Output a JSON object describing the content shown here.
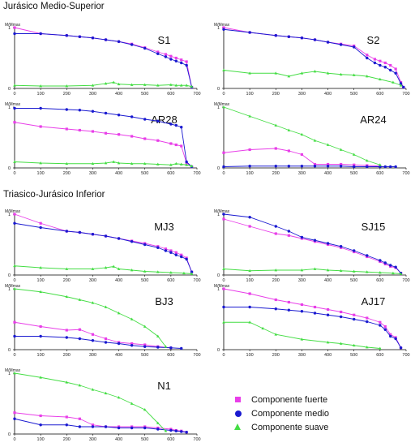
{
  "sections": [
    {
      "title": "Jurásico Medio-Superior"
    },
    {
      "title": "Triasico-Jurásico Inferior"
    }
  ],
  "legend": [
    {
      "label": "Componente fuerte",
      "marker": "square",
      "color": "#e83ee8"
    },
    {
      "label": "Componente medio",
      "marker": "circle",
      "color": "#1a1ad0"
    },
    {
      "label": "Componente suave",
      "marker": "triangle",
      "color": "#44dd44"
    }
  ],
  "colors": {
    "fuerte": "#e83ee8",
    "medio": "#1a1ad0",
    "suave": "#44dd44"
  },
  "chart_data": [
    {
      "type": "line",
      "title": "S1",
      "ylabel": "M/Mmax",
      "xlim": [
        0,
        700
      ],
      "ylim": [
        0,
        1
      ],
      "xticks": [
        0,
        100,
        200,
        300,
        400,
        500,
        600,
        700
      ],
      "series": [
        {
          "name": "Componente fuerte",
          "x": [
            0,
            100,
            200,
            250,
            300,
            350,
            400,
            450,
            500,
            550,
            580,
            600,
            620,
            640,
            660,
            680
          ],
          "y": [
            1.0,
            0.9,
            0.87,
            0.85,
            0.83,
            0.8,
            0.77,
            0.73,
            0.67,
            0.6,
            0.56,
            0.53,
            0.5,
            0.47,
            0.44,
            0.02
          ]
        },
        {
          "name": "Componente medio",
          "x": [
            0,
            100,
            200,
            250,
            300,
            350,
            400,
            450,
            500,
            550,
            580,
            600,
            620,
            640,
            660,
            680
          ],
          "y": [
            0.9,
            0.9,
            0.87,
            0.85,
            0.83,
            0.8,
            0.77,
            0.72,
            0.66,
            0.57,
            0.52,
            0.48,
            0.45,
            0.42,
            0.38,
            0.02
          ]
        },
        {
          "name": "Componente suave",
          "x": [
            0,
            100,
            200,
            300,
            350,
            380,
            400,
            450,
            500,
            550,
            600,
            620,
            640,
            660,
            680
          ],
          "y": [
            0.05,
            0.04,
            0.04,
            0.05,
            0.08,
            0.1,
            0.07,
            0.06,
            0.06,
            0.05,
            0.06,
            0.05,
            0.05,
            0.05,
            0.03
          ]
        }
      ]
    },
    {
      "type": "line",
      "title": "S2",
      "ylabel": "M/Mmax",
      "xlim": [
        0,
        700
      ],
      "ylim": [
        0,
        1
      ],
      "xticks": [
        0,
        100,
        200,
        300,
        400,
        500,
        600,
        700
      ],
      "series": [
        {
          "name": "Componente fuerte",
          "x": [
            0,
            100,
            200,
            250,
            300,
            350,
            400,
            450,
            500,
            550,
            580,
            600,
            620,
            640,
            660,
            680,
            690
          ],
          "y": [
            1.0,
            0.92,
            0.87,
            0.85,
            0.83,
            0.8,
            0.76,
            0.73,
            0.7,
            0.55,
            0.48,
            0.45,
            0.42,
            0.38,
            0.32,
            0.1,
            0.02
          ]
        },
        {
          "name": "Componente medio",
          "x": [
            0,
            100,
            200,
            250,
            300,
            350,
            400,
            450,
            500,
            550,
            580,
            600,
            620,
            640,
            660,
            680,
            690
          ],
          "y": [
            0.97,
            0.92,
            0.87,
            0.85,
            0.83,
            0.8,
            0.76,
            0.72,
            0.68,
            0.5,
            0.42,
            0.38,
            0.35,
            0.3,
            0.25,
            0.08,
            0.02
          ]
        },
        {
          "name": "Componente suave",
          "x": [
            0,
            100,
            200,
            250,
            300,
            350,
            400,
            450,
            500,
            550,
            600,
            650,
            680
          ],
          "y": [
            0.3,
            0.25,
            0.25,
            0.2,
            0.25,
            0.28,
            0.25,
            0.23,
            0.22,
            0.2,
            0.15,
            0.1,
            0.05
          ]
        }
      ]
    },
    {
      "type": "line",
      "title": "AR28",
      "ylabel": "M/Mmax",
      "xlim": [
        0,
        700
      ],
      "ylim": [
        0,
        1
      ],
      "xticks": [
        0,
        100,
        200,
        300,
        400,
        500,
        600,
        700
      ],
      "series": [
        {
          "name": "Componente fuerte",
          "x": [
            0,
            100,
            200,
            250,
            300,
            350,
            400,
            450,
            500,
            550,
            600,
            620,
            640,
            660,
            680
          ],
          "y": [
            0.75,
            0.68,
            0.64,
            0.62,
            0.6,
            0.57,
            0.55,
            0.52,
            0.48,
            0.45,
            0.4,
            0.38,
            0.36,
            0.08,
            0.02
          ]
        },
        {
          "name": "Componente medio",
          "x": [
            0,
            100,
            200,
            250,
            300,
            350,
            400,
            450,
            500,
            550,
            600,
            620,
            640,
            660,
            680
          ],
          "y": [
            0.98,
            0.98,
            0.96,
            0.95,
            0.93,
            0.9,
            0.87,
            0.84,
            0.8,
            0.77,
            0.72,
            0.7,
            0.67,
            0.1,
            0.02
          ]
        },
        {
          "name": "Componente suave",
          "x": [
            0,
            100,
            200,
            300,
            350,
            380,
            400,
            450,
            500,
            550,
            600,
            620,
            640,
            660,
            680
          ],
          "y": [
            0.1,
            0.08,
            0.07,
            0.07,
            0.08,
            0.1,
            0.08,
            0.07,
            0.07,
            0.06,
            0.05,
            0.07,
            0.06,
            0.05,
            0.03
          ]
        }
      ]
    },
    {
      "type": "line",
      "title": "AR24",
      "ylabel": "M/Mmax",
      "xlim": [
        0,
        700
      ],
      "ylim": [
        0,
        1
      ],
      "xticks": [
        0,
        100,
        200,
        300,
        400,
        500,
        600,
        700
      ],
      "series": [
        {
          "name": "Componente fuerte",
          "x": [
            0,
            100,
            200,
            250,
            300,
            350,
            400,
            450,
            500,
            550,
            600
          ],
          "y": [
            0.25,
            0.3,
            0.32,
            0.28,
            0.22,
            0.06,
            0.06,
            0.06,
            0.05,
            0.04,
            0.03
          ]
        },
        {
          "name": "Componente medio",
          "x": [
            0,
            100,
            200,
            250,
            300,
            350,
            400,
            450,
            500,
            550,
            600,
            620,
            640,
            660
          ],
          "y": [
            0.02,
            0.03,
            0.03,
            0.03,
            0.03,
            0.03,
            0.03,
            0.03,
            0.02,
            0.02,
            0.02,
            0.02,
            0.02,
            0.02
          ]
        },
        {
          "name": "Componente suave",
          "x": [
            0,
            100,
            200,
            250,
            300,
            350,
            400,
            450,
            500,
            550,
            600
          ],
          "y": [
            1.0,
            0.85,
            0.7,
            0.62,
            0.55,
            0.45,
            0.38,
            0.3,
            0.22,
            0.12,
            0.05
          ]
        }
      ]
    },
    {
      "type": "line",
      "title": "MJ3",
      "ylabel": "M/Mmax",
      "xlim": [
        0,
        700
      ],
      "ylim": [
        0,
        1
      ],
      "xticks": [
        0,
        100,
        200,
        300,
        400,
        500,
        600,
        700
      ],
      "series": [
        {
          "name": "Componente fuerte",
          "x": [
            0,
            100,
            200,
            250,
            300,
            350,
            400,
            450,
            500,
            550,
            580,
            600,
            620,
            640,
            660,
            680
          ],
          "y": [
            1.0,
            0.85,
            0.72,
            0.7,
            0.67,
            0.64,
            0.6,
            0.56,
            0.52,
            0.47,
            0.43,
            0.4,
            0.37,
            0.33,
            0.28,
            0.05
          ]
        },
        {
          "name": "Componente medio",
          "x": [
            0,
            100,
            200,
            250,
            300,
            350,
            400,
            450,
            500,
            550,
            580,
            600,
            620,
            640,
            660,
            680
          ],
          "y": [
            0.85,
            0.78,
            0.72,
            0.7,
            0.67,
            0.64,
            0.6,
            0.55,
            0.5,
            0.45,
            0.4,
            0.37,
            0.33,
            0.3,
            0.26,
            0.05
          ]
        },
        {
          "name": "Componente suave",
          "x": [
            0,
            100,
            200,
            300,
            350,
            380,
            400,
            450,
            500,
            550,
            600,
            650,
            680
          ],
          "y": [
            0.15,
            0.12,
            0.1,
            0.1,
            0.12,
            0.14,
            0.1,
            0.08,
            0.06,
            0.05,
            0.04,
            0.03,
            0.02
          ]
        }
      ]
    },
    {
      "type": "line",
      "title": "SJ15",
      "ylabel": "M/Mmax",
      "xlim": [
        0,
        700
      ],
      "ylim": [
        0,
        1
      ],
      "xticks": [
        0,
        100,
        200,
        300,
        400,
        500,
        600,
        700
      ],
      "series": [
        {
          "name": "Componente fuerte",
          "x": [
            0,
            100,
            200,
            250,
            300,
            350,
            400,
            450,
            500,
            550,
            600,
            620,
            640,
            660,
            680
          ],
          "y": [
            0.92,
            0.8,
            0.68,
            0.65,
            0.6,
            0.55,
            0.5,
            0.45,
            0.38,
            0.3,
            0.22,
            0.18,
            0.14,
            0.12,
            0.03
          ]
        },
        {
          "name": "Componente medio",
          "x": [
            0,
            100,
            200,
            250,
            300,
            350,
            400,
            450,
            500,
            550,
            600,
            620,
            640,
            660,
            680
          ],
          "y": [
            1.0,
            0.95,
            0.8,
            0.72,
            0.62,
            0.57,
            0.52,
            0.47,
            0.4,
            0.32,
            0.24,
            0.2,
            0.16,
            0.13,
            0.03
          ]
        },
        {
          "name": "Componente suave",
          "x": [
            0,
            100,
            200,
            300,
            350,
            400,
            450,
            500,
            550,
            600,
            650,
            680
          ],
          "y": [
            0.1,
            0.07,
            0.08,
            0.08,
            0.1,
            0.08,
            0.07,
            0.06,
            0.05,
            0.04,
            0.03,
            0.02
          ]
        }
      ]
    },
    {
      "type": "line",
      "title": "BJ3",
      "ylabel": "M/Mmax",
      "xlim": [
        0,
        700
      ],
      "ylim": [
        0,
        1
      ],
      "xticks": [
        0,
        100,
        200,
        300,
        400,
        500,
        600,
        700
      ],
      "series": [
        {
          "name": "Componente fuerte",
          "x": [
            0,
            100,
            200,
            250,
            300,
            350,
            400,
            450,
            500,
            550,
            600
          ],
          "y": [
            0.45,
            0.38,
            0.32,
            0.33,
            0.25,
            0.18,
            0.12,
            0.1,
            0.08,
            0.05,
            0.03
          ]
        },
        {
          "name": "Componente medio",
          "x": [
            0,
            100,
            200,
            250,
            300,
            350,
            400,
            450,
            500,
            550,
            600,
            640
          ],
          "y": [
            0.22,
            0.22,
            0.2,
            0.18,
            0.15,
            0.12,
            0.1,
            0.07,
            0.05,
            0.04,
            0.03,
            0.02
          ]
        },
        {
          "name": "Componente suave",
          "x": [
            0,
            100,
            200,
            250,
            300,
            350,
            400,
            450,
            500,
            550,
            580
          ],
          "y": [
            1.0,
            0.95,
            0.87,
            0.82,
            0.77,
            0.7,
            0.6,
            0.5,
            0.38,
            0.22,
            0.05
          ]
        }
      ]
    },
    {
      "type": "line",
      "title": "AJ17",
      "ylabel": "M/Mmax",
      "xlim": [
        0,
        700
      ],
      "ylim": [
        0,
        1
      ],
      "xticks": [
        0,
        100,
        200,
        300,
        400,
        500,
        600,
        700
      ],
      "series": [
        {
          "name": "Componente fuerte",
          "x": [
            0,
            100,
            200,
            250,
            300,
            350,
            400,
            450,
            500,
            550,
            600,
            620,
            640,
            660,
            680
          ],
          "y": [
            1.0,
            0.92,
            0.82,
            0.78,
            0.74,
            0.7,
            0.66,
            0.62,
            0.57,
            0.52,
            0.45,
            0.38,
            0.25,
            0.2,
            0.03
          ]
        },
        {
          "name": "Componente medio",
          "x": [
            0,
            100,
            200,
            250,
            300,
            350,
            400,
            450,
            500,
            550,
            600,
            620,
            640,
            660,
            680
          ],
          "y": [
            0.7,
            0.7,
            0.67,
            0.65,
            0.63,
            0.6,
            0.57,
            0.54,
            0.5,
            0.46,
            0.4,
            0.33,
            0.22,
            0.18,
            0.03
          ]
        },
        {
          "name": "Componente suave",
          "x": [
            0,
            100,
            150,
            200,
            300,
            400,
            450,
            500,
            550,
            600
          ],
          "y": [
            0.45,
            0.45,
            0.35,
            0.25,
            0.17,
            0.12,
            0.1,
            0.07,
            0.04,
            0.02
          ]
        }
      ]
    },
    {
      "type": "line",
      "title": "N1",
      "ylabel": "M/Mmax",
      "xlim": [
        0,
        700
      ],
      "ylim": [
        0,
        1
      ],
      "xticks": [
        0,
        100,
        200,
        300,
        400,
        500,
        600,
        700
      ],
      "series": [
        {
          "name": "Componente fuerte",
          "x": [
            0,
            100,
            200,
            250,
            300,
            350,
            400,
            450,
            500,
            550,
            600,
            620,
            640,
            660
          ],
          "y": [
            0.35,
            0.3,
            0.28,
            0.25,
            0.15,
            0.12,
            0.12,
            0.12,
            0.12,
            0.1,
            0.08,
            0.06,
            0.05,
            0.03
          ]
        },
        {
          "name": "Componente medio",
          "x": [
            0,
            100,
            200,
            250,
            300,
            350,
            400,
            450,
            500,
            550,
            600,
            620,
            640,
            660
          ],
          "y": [
            0.25,
            0.15,
            0.15,
            0.12,
            0.12,
            0.12,
            0.1,
            0.1,
            0.1,
            0.08,
            0.06,
            0.05,
            0.04,
            0.03
          ]
        },
        {
          "name": "Componente suave",
          "x": [
            0,
            100,
            200,
            250,
            300,
            350,
            400,
            450,
            500,
            550,
            580
          ],
          "y": [
            1.0,
            0.93,
            0.85,
            0.8,
            0.73,
            0.67,
            0.6,
            0.5,
            0.4,
            0.18,
            0.05
          ]
        }
      ]
    }
  ]
}
